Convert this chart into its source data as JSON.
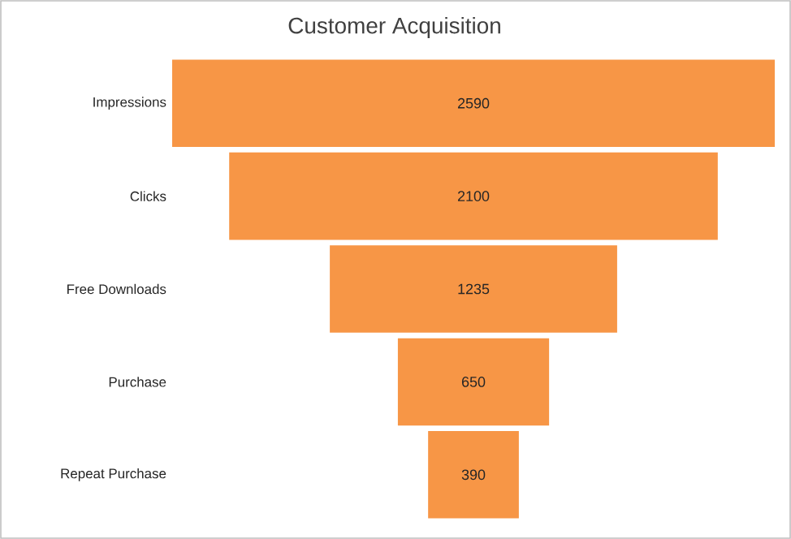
{
  "chart_data": {
    "type": "other",
    "title": "Customer Acquisition",
    "categories": [
      "Impressions",
      "Clicks",
      "Free Downloads",
      "Purchase",
      "Repeat Purchase"
    ],
    "values": [
      2590,
      2100,
      1235,
      650,
      390
    ],
    "color": "#f79646",
    "data_labels": true
  }
}
